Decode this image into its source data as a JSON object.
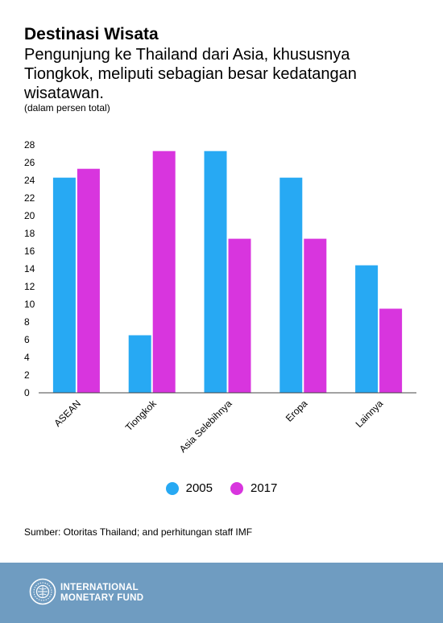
{
  "header": {
    "title": "Destinasi Wisata",
    "subtitle": "Pengunjung ke Thailand dari Asia, khususnya Tiongkok, meliputi sebagian besar kedatangan wisatawan.",
    "unit_note": "(dalam persen total)"
  },
  "chart_data": {
    "type": "bar",
    "title": "",
    "xlabel": "",
    "ylabel": "",
    "categories": [
      "ASEAN",
      "Tiongkok",
      "Asia Selebihnya",
      "Eropa",
      "Lainnya"
    ],
    "series": [
      {
        "name": "2005",
        "values": [
          24.3,
          6.5,
          27.3,
          24.3,
          14.4
        ],
        "color": "#27a9f3"
      },
      {
        "name": "2017",
        "values": [
          25.3,
          27.3,
          17.4,
          17.4,
          9.5
        ],
        "color": "#d835de"
      }
    ],
    "ylim": [
      0,
      28
    ],
    "yticks": [
      "0",
      "2",
      "4",
      "6",
      "8",
      "10",
      "12",
      "14",
      "16",
      "18",
      "20",
      "22",
      "24",
      "26",
      "28"
    ],
    "grid": false,
    "legend_position": "bottom"
  },
  "source": "Sumber: Otoritas Thailand; and perhitungan staff IMF",
  "footer": {
    "brand_line1": "INTERNATIONAL",
    "brand_line2": "MONETARY FUND",
    "background": "#6f9cc1",
    "icon": "imf-seal-icon"
  }
}
